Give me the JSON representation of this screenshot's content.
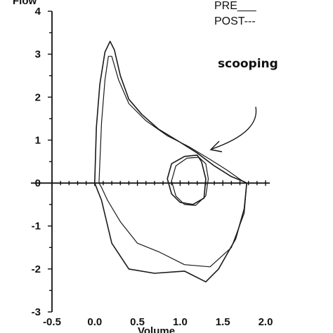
{
  "chart_data": {
    "type": "line",
    "title": "",
    "xlabel": "Volume",
    "ylabel": "Flow",
    "xlim": [
      -0.5,
      2.0
    ],
    "ylim": [
      -3,
      4
    ],
    "x_ticks": [
      "-0.5",
      "0.0",
      "0.5",
      "1.0",
      "1.5",
      "2.0"
    ],
    "y_ticks": [
      "-3",
      "-2",
      "-1",
      "0",
      "1",
      "2",
      "3",
      "4"
    ],
    "grid": false,
    "legend": {
      "placement": "top-right",
      "entries": [
        "PRE___",
        "POST---"
      ]
    },
    "annotations": [
      {
        "text": "scooping",
        "points_to": {
          "x": 1.4,
          "y": 0.8
        }
      }
    ],
    "series": [
      {
        "name": "PRE___",
        "x": [
          0.0,
          0.02,
          0.06,
          0.12,
          0.18,
          0.23,
          0.3,
          0.4,
          0.55,
          0.75,
          1.0,
          1.2,
          1.4,
          1.6,
          1.75,
          1.78,
          1.75,
          1.65,
          1.45,
          1.3,
          1.05,
          0.7,
          0.4,
          0.2,
          0.08,
          0.0
        ],
        "y": [
          0.0,
          1.3,
          2.3,
          3.05,
          3.3,
          3.1,
          2.5,
          1.95,
          1.6,
          1.25,
          0.95,
          0.7,
          0.4,
          0.15,
          0.03,
          0.0,
          -0.6,
          -1.3,
          -2.0,
          -2.3,
          -2.05,
          -2.1,
          -2.0,
          -1.4,
          -0.4,
          0.0
        ]
      },
      {
        "name": "POST---",
        "x": [
          0.05,
          0.08,
          0.12,
          0.16,
          0.2,
          0.28,
          0.4,
          0.6,
          0.85,
          1.1,
          1.35,
          1.55,
          1.72,
          1.78,
          1.75,
          1.6,
          1.35,
          1.05,
          0.75,
          0.5,
          0.3,
          0.15,
          0.08,
          0.05
        ],
        "y": [
          0.0,
          1.4,
          2.4,
          2.95,
          2.95,
          2.4,
          1.85,
          1.45,
          1.1,
          0.85,
          0.55,
          0.3,
          0.06,
          0.0,
          -0.7,
          -1.5,
          -1.95,
          -1.9,
          -1.6,
          -1.4,
          -0.9,
          -0.4,
          -0.1,
          0.0
        ]
      },
      {
        "name": "",
        "x": [
          1.25,
          1.2,
          1.05,
          0.9,
          0.85,
          0.9,
          1.0,
          1.15,
          1.28,
          1.3,
          1.25
        ],
        "y": [
          0.5,
          0.65,
          0.62,
          0.45,
          0.1,
          -0.25,
          -0.45,
          -0.5,
          -0.35,
          0.1,
          0.5
        ]
      },
      {
        "name": "",
        "x": [
          1.3,
          1.22,
          1.08,
          0.95,
          0.9,
          0.95,
          1.05,
          1.18,
          1.3,
          1.33,
          1.3
        ],
        "y": [
          0.45,
          0.6,
          0.58,
          0.4,
          0.05,
          -0.3,
          -0.5,
          -0.52,
          -0.3,
          0.1,
          0.45
        ]
      }
    ]
  }
}
